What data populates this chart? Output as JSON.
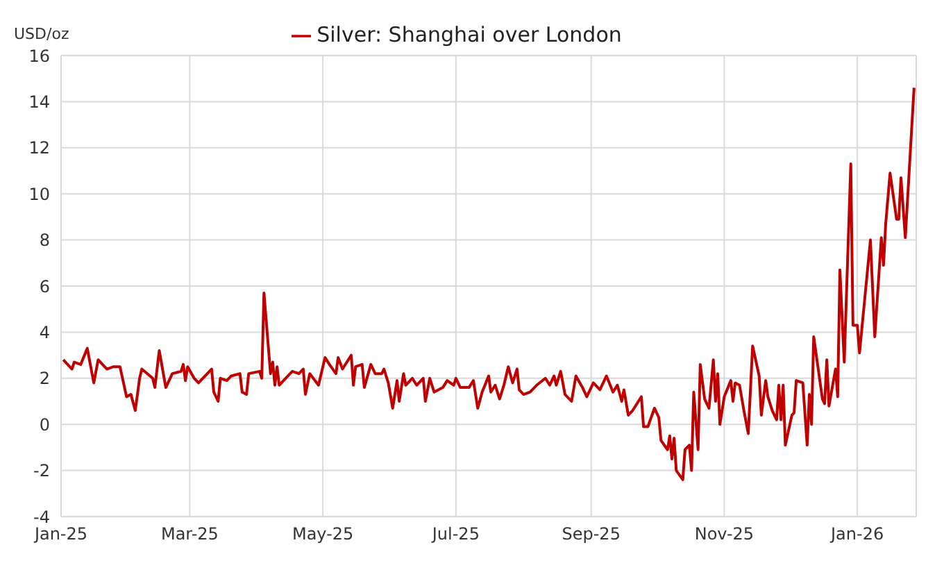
{
  "chart_data": {
    "type": "line",
    "ylabel": "USD/oz",
    "legend": "top",
    "grid": true,
    "marker": "none",
    "line_style": "solid",
    "xlim": [
      "2025-01-01",
      "2026-01-28"
    ],
    "xticks": [
      {
        "value": "2025-01-01",
        "label": "Jan-25"
      },
      {
        "value": "2025-03-01",
        "label": "Mar-25"
      },
      {
        "value": "2025-05-01",
        "label": "May-25"
      },
      {
        "value": "2025-07-01",
        "label": "Jul-25"
      },
      {
        "value": "2025-09-01",
        "label": "Sep-25"
      },
      {
        "value": "2025-11-01",
        "label": "Nov-25"
      },
      {
        "value": "2026-01-01",
        "label": "Jan-26"
      }
    ],
    "ylim": [
      -4,
      16
    ],
    "yticks": [
      -4,
      -2,
      0,
      2,
      4,
      6,
      8,
      10,
      12,
      14,
      16
    ],
    "x": [
      "2025-01-02",
      "2025-01-06",
      "2025-01-07",
      "2025-01-10",
      "2025-01-13",
      "2025-01-16",
      "2025-01-18",
      "2025-01-22",
      "2025-01-25",
      "2025-01-28",
      "2025-01-31",
      "2025-02-02",
      "2025-02-04",
      "2025-02-06",
      "2025-02-07",
      "2025-02-12",
      "2025-02-13",
      "2025-02-15",
      "2025-02-18",
      "2025-02-21",
      "2025-02-25",
      "2025-02-26",
      "2025-02-27",
      "2025-02-28",
      "2025-03-03",
      "2025-03-05",
      "2025-03-11",
      "2025-03-12",
      "2025-03-14",
      "2025-03-15",
      "2025-03-18",
      "2025-03-20",
      "2025-03-24",
      "2025-03-25",
      "2025-03-27",
      "2025-03-28",
      "2025-04-02",
      "2025-04-03",
      "2025-04-04",
      "2025-04-07",
      "2025-04-08",
      "2025-04-09",
      "2025-04-10",
      "2025-04-11",
      "2025-04-15",
      "2025-04-17",
      "2025-04-20",
      "2025-04-22",
      "2025-04-23",
      "2025-04-25",
      "2025-04-29",
      "2025-05-02",
      "2025-05-04",
      "2025-05-07",
      "2025-05-08",
      "2025-05-10",
      "2025-05-14",
      "2025-05-15",
      "2025-05-16",
      "2025-05-19",
      "2025-05-20",
      "2025-05-23",
      "2025-05-25",
      "2025-05-28",
      "2025-05-29",
      "2025-05-31",
      "2025-06-02",
      "2025-06-04",
      "2025-06-05",
      "2025-06-07",
      "2025-06-08",
      "2025-06-11",
      "2025-06-13",
      "2025-06-16",
      "2025-06-17",
      "2025-06-19",
      "2025-06-21",
      "2025-06-25",
      "2025-06-27",
      "2025-06-30",
      "2025-07-01",
      "2025-07-03",
      "2025-07-07",
      "2025-07-09",
      "2025-07-11",
      "2025-07-13",
      "2025-07-16",
      "2025-07-17",
      "2025-07-19",
      "2025-07-21",
      "2025-07-23",
      "2025-07-25",
      "2025-07-27",
      "2025-07-29",
      "2025-07-30",
      "2025-08-01",
      "2025-08-04",
      "2025-08-07",
      "2025-08-11",
      "2025-08-13",
      "2025-08-15",
      "2025-08-16",
      "2025-08-18",
      "2025-08-20",
      "2025-08-23",
      "2025-08-25",
      "2025-08-28",
      "2025-08-30",
      "2025-09-02",
      "2025-09-05",
      "2025-09-08",
      "2025-09-11",
      "2025-09-13",
      "2025-09-15",
      "2025-09-16",
      "2025-09-18",
      "2025-09-20",
      "2025-09-24",
      "2025-09-25",
      "2025-09-27",
      "2025-09-30",
      "2025-10-02",
      "2025-10-03",
      "2025-10-06",
      "2025-10-07",
      "2025-10-08",
      "2025-10-09",
      "2025-10-10",
      "2025-10-13",
      "2025-10-14",
      "2025-10-16",
      "2025-10-17",
      "2025-10-18",
      "2025-10-20",
      "2025-10-21",
      "2025-10-23",
      "2025-10-25",
      "2025-10-27",
      "2025-10-28",
      "2025-10-29",
      "2025-10-30",
      "2025-11-01",
      "2025-11-04",
      "2025-11-05",
      "2025-11-06",
      "2025-11-08",
      "2025-11-10",
      "2025-11-12",
      "2025-11-14",
      "2025-11-17",
      "2025-11-18",
      "2025-11-20",
      "2025-11-21",
      "2025-11-23",
      "2025-11-25",
      "2025-11-26",
      "2025-11-27",
      "2025-11-28",
      "2025-11-29",
      "2025-12-02",
      "2025-12-03",
      "2025-12-04",
      "2025-12-07",
      "2025-12-09",
      "2025-12-10",
      "2025-12-11",
      "2025-12-12",
      "2025-12-16",
      "2025-12-17",
      "2025-12-18",
      "2025-12-19",
      "2025-12-22",
      "2025-12-23",
      "2025-12-24",
      "2025-12-26",
      "2025-12-29",
      "2025-12-30",
      "2026-01-01",
      "2026-01-02",
      "2026-01-07",
      "2026-01-09",
      "2026-01-12",
      "2026-01-13",
      "2026-01-14",
      "2026-01-16",
      "2026-01-19",
      "2026-01-20",
      "2026-01-21",
      "2026-01-23",
      "2026-01-27"
    ],
    "series": [
      {
        "name": "Silver: Shanghai over London",
        "color": "#c00000",
        "values": [
          2.8,
          2.4,
          2.7,
          2.6,
          3.3,
          1.8,
          2.8,
          2.4,
          2.5,
          2.5,
          1.2,
          1.3,
          0.6,
          2.0,
          2.4,
          2.0,
          1.6,
          3.2,
          1.6,
          2.2,
          2.3,
          2.6,
          1.9,
          2.5,
          2.0,
          1.8,
          2.4,
          1.4,
          1.0,
          2.0,
          1.9,
          2.1,
          2.2,
          1.4,
          1.3,
          2.2,
          2.3,
          2.0,
          5.7,
          2.2,
          2.7,
          1.7,
          2.5,
          1.7,
          2.1,
          2.3,
          2.2,
          2.4,
          1.3,
          2.2,
          1.7,
          2.9,
          2.6,
          2.2,
          2.9,
          2.4,
          3.0,
          1.7,
          2.5,
          2.6,
          1.6,
          2.6,
          2.2,
          2.2,
          2.4,
          1.8,
          0.7,
          1.9,
          1.0,
          2.2,
          1.7,
          2.0,
          1.7,
          2.0,
          1.0,
          2.0,
          1.4,
          1.6,
          1.9,
          1.7,
          2.0,
          1.6,
          1.6,
          1.9,
          0.7,
          1.4,
          2.1,
          1.4,
          1.7,
          1.1,
          1.7,
          2.5,
          1.8,
          2.4,
          1.5,
          1.3,
          1.4,
          1.7,
          2.0,
          1.7,
          2.1,
          1.7,
          2.3,
          1.3,
          1.0,
          2.1,
          1.6,
          1.2,
          1.8,
          1.5,
          2.1,
          1.4,
          1.7,
          1.0,
          1.5,
          0.4,
          0.6,
          1.2,
          -0.1,
          -0.1,
          0.7,
          0.3,
          -0.7,
          -1.1,
          -0.5,
          -1.5,
          -0.6,
          -2.0,
          -2.4,
          -1.1,
          -0.9,
          -2.0,
          1.4,
          -1.1,
          2.6,
          1.1,
          0.7,
          2.8,
          1.0,
          2.2,
          0.0,
          1.2,
          1.9,
          1.0,
          1.8,
          1.7,
          0.6,
          -0.4,
          3.4,
          2.1,
          0.4,
          1.9,
          1.2,
          0.6,
          0.2,
          1.7,
          0.2,
          1.7,
          -0.9,
          0.4,
          0.5,
          1.9,
          1.8,
          -0.9,
          1.3,
          0.0,
          3.8,
          1.1,
          0.9,
          2.8,
          0.8,
          2.4,
          1.2,
          6.7,
          2.7,
          11.3,
          4.3,
          4.3,
          3.1,
          8.0,
          3.8,
          8.1,
          6.9,
          8.7,
          10.9,
          8.9,
          8.9,
          10.7,
          8.1,
          14.6
        ]
      }
    ]
  }
}
